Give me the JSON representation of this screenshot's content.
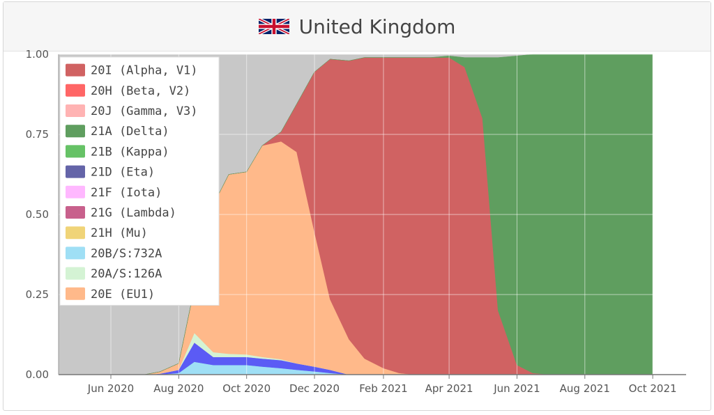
{
  "header": {
    "title": "United Kingdom",
    "flag_icon": "uk-flag-icon"
  },
  "chart_data": {
    "type": "area",
    "stacked": true,
    "x": [
      "2020-04-15",
      "2020-05-01",
      "2020-05-15",
      "2020-06-01",
      "2020-06-15",
      "2020-07-01",
      "2020-07-15",
      "2020-08-01",
      "2020-08-15",
      "2020-09-01",
      "2020-09-15",
      "2020-10-01",
      "2020-10-15",
      "2020-11-01",
      "2020-11-15",
      "2020-12-01",
      "2020-12-15",
      "2021-01-01",
      "2021-01-15",
      "2021-02-01",
      "2021-02-15",
      "2021-03-01",
      "2021-03-15",
      "2021-04-01",
      "2021-04-15",
      "2021-05-01",
      "2021-05-15",
      "2021-06-01",
      "2021-06-15",
      "2021-07-01",
      "2021-07-15",
      "2021-08-01",
      "2021-08-15",
      "2021-09-01",
      "2021-09-15",
      "2021-10-01"
    ],
    "ylim": [
      0,
      1
    ],
    "yticks": [
      "0.00",
      "0.25",
      "0.50",
      "0.75",
      "1.00"
    ],
    "xticks": [
      {
        "date": "2020-06-01",
        "label": "Jun 2020"
      },
      {
        "date": "2020-08-01",
        "label": "Aug 2020"
      },
      {
        "date": "2020-10-01",
        "label": "Oct 2020"
      },
      {
        "date": "2020-12-01",
        "label": "Dec 2020"
      },
      {
        "date": "2021-02-01",
        "label": "Feb 2021"
      },
      {
        "date": "2021-04-01",
        "label": "Apr 2021"
      },
      {
        "date": "2021-06-01",
        "label": "Jun 2021"
      },
      {
        "date": "2021-08-01",
        "label": "Aug 2021"
      },
      {
        "date": "2021-10-01",
        "label": "Oct 2021"
      }
    ],
    "grid": true,
    "legend_position": "top-left",
    "background_color": "#c8c8c8",
    "series": [
      {
        "name": "20B/S:732A",
        "color": "#9fdff5",
        "values": [
          0,
          0,
          0,
          0,
          0,
          0,
          0,
          0.005,
          0.04,
          0.03,
          0.03,
          0.03,
          0.025,
          0.02,
          0.015,
          0.01,
          0.005,
          0,
          0,
          0,
          0,
          0,
          0,
          0,
          0,
          0,
          0,
          0,
          0,
          0,
          0,
          0,
          0,
          0,
          0,
          0
        ]
      },
      {
        "name": "21D (Eta)",
        "color": "#5b5bf5",
        "values": [
          0,
          0,
          0,
          0,
          0,
          0,
          0.003,
          0.01,
          0.06,
          0.025,
          0.025,
          0.025,
          0.025,
          0.025,
          0.02,
          0.015,
          0.01,
          0,
          0,
          0,
          0,
          0,
          0,
          0,
          0,
          0,
          0,
          0,
          0,
          0,
          0,
          0,
          0,
          0,
          0,
          0
        ]
      },
      {
        "name": "20A/S:126A",
        "color": "#d4f3d4",
        "values": [
          0,
          0,
          0,
          0,
          0,
          0,
          0,
          0,
          0.03,
          0.015,
          0.01,
          0.008,
          0.005,
          0.003,
          0,
          0,
          0,
          0,
          0,
          0,
          0,
          0,
          0,
          0,
          0,
          0,
          0,
          0,
          0,
          0,
          0,
          0,
          0,
          0,
          0,
          0
        ]
      },
      {
        "name": "20E (EU1)",
        "color": "#ffb98a",
        "values": [
          0,
          0,
          0,
          0,
          0,
          0,
          0.006,
          0.02,
          0.14,
          0.46,
          0.56,
          0.57,
          0.66,
          0.68,
          0.66,
          0.42,
          0.22,
          0.11,
          0.05,
          0.02,
          0.005,
          0,
          0,
          0,
          0,
          0,
          0,
          0,
          0,
          0,
          0,
          0,
          0,
          0,
          0,
          0
        ]
      },
      {
        "name": "20I (Alpha, V1)",
        "color": "#d06262",
        "values": [
          0,
          0,
          0,
          0,
          0,
          0,
          0,
          0,
          0,
          0,
          0,
          0,
          0,
          0.03,
          0.15,
          0.5,
          0.75,
          0.87,
          0.94,
          0.97,
          0.985,
          0.99,
          0.99,
          0.99,
          0.96,
          0.8,
          0.2,
          0.03,
          0.005,
          0,
          0,
          0,
          0,
          0,
          0,
          0
        ]
      },
      {
        "name": "21A (Delta)",
        "color": "#5f9e5f",
        "values": [
          0,
          0,
          0,
          0,
          0,
          0,
          0,
          0,
          0,
          0,
          0,
          0,
          0,
          0,
          0,
          0,
          0,
          0,
          0,
          0,
          0,
          0,
          0,
          0.005,
          0.03,
          0.19,
          0.79,
          0.965,
          0.995,
          1,
          1,
          1,
          1,
          1,
          1,
          1
        ]
      }
    ],
    "legend": [
      {
        "name": "20I (Alpha, V1)",
        "color": "#d06262"
      },
      {
        "name": "20H (Beta, V2)",
        "color": "#ff6666"
      },
      {
        "name": "20J (Gamma, V3)",
        "color": "#ffb3b3"
      },
      {
        "name": "21A (Delta)",
        "color": "#5f9e5f"
      },
      {
        "name": "21B (Kappa)",
        "color": "#66c266"
      },
      {
        "name": "21D (Eta)",
        "color": "#6464a8"
      },
      {
        "name": "21F (Iota)",
        "color": "#ffb8ff"
      },
      {
        "name": "21G (Lambda)",
        "color": "#c8608c"
      },
      {
        "name": "21H (Mu)",
        "color": "#f0d478"
      },
      {
        "name": "20B/S:732A",
        "color": "#9fdff5"
      },
      {
        "name": "20A/S:126A",
        "color": "#d4f3d4"
      },
      {
        "name": "20E (EU1)",
        "color": "#ffb98a"
      }
    ]
  }
}
